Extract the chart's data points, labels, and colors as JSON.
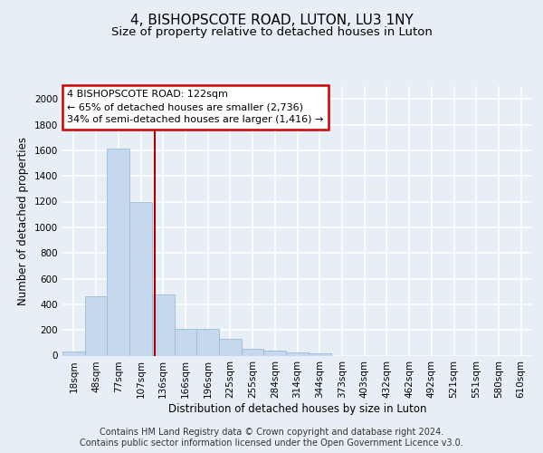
{
  "title": "4, BISHOPSCOTE ROAD, LUTON, LU3 1NY",
  "subtitle": "Size of property relative to detached houses in Luton",
  "xlabel": "Distribution of detached houses by size in Luton",
  "ylabel": "Number of detached properties",
  "categories": [
    "18sqm",
    "48sqm",
    "77sqm",
    "107sqm",
    "136sqm",
    "166sqm",
    "196sqm",
    "225sqm",
    "255sqm",
    "284sqm",
    "314sqm",
    "344sqm",
    "373sqm",
    "403sqm",
    "432sqm",
    "462sqm",
    "492sqm",
    "521sqm",
    "551sqm",
    "580sqm",
    "610sqm"
  ],
  "values": [
    35,
    460,
    1610,
    1200,
    480,
    210,
    210,
    130,
    50,
    40,
    25,
    15,
    0,
    0,
    0,
    0,
    0,
    0,
    0,
    0,
    0
  ],
  "bar_color": "#c5d8ee",
  "bar_edge_color": "#9abbd8",
  "annotation_line1": "4 BISHOPSCOTE ROAD: 122sqm",
  "annotation_line2": "← 65% of detached houses are smaller (2,736)",
  "annotation_line3": "34% of semi-detached houses are larger (1,416) →",
  "annotation_box_color": "#ffffff",
  "annotation_box_edge": "#cc0000",
  "vline_color": "#aa0000",
  "vline_x_index": 3.62,
  "footer_text": "Contains HM Land Registry data © Crown copyright and database right 2024.\nContains public sector information licensed under the Open Government Licence v3.0.",
  "ylim": [
    0,
    2100
  ],
  "yticks": [
    0,
    200,
    400,
    600,
    800,
    1000,
    1200,
    1400,
    1600,
    1800,
    2000
  ],
  "bg_color": "#e8eef5",
  "plot_bg_color": "#e8eef5",
  "grid_color": "#ffffff",
  "title_fontsize": 11,
  "subtitle_fontsize": 9.5,
  "tick_fontsize": 7.5,
  "label_fontsize": 8.5,
  "footer_fontsize": 7,
  "ann_fontsize": 8
}
